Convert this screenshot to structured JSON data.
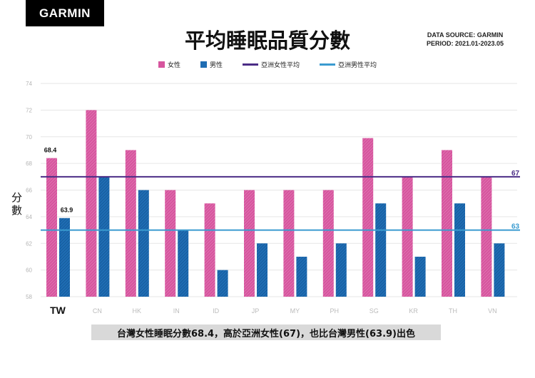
{
  "header": {
    "logo": "GARMIN",
    "title": "平均睡眠品質分數",
    "source_line1": "DATA SOURCE: GARMIN",
    "source_line2": "PERIOD: 2021.01-2023.05"
  },
  "caption": "台灣女性睡眠分數68.4，高於亞洲女性(67)，也比台灣男性(63.9)出色",
  "chart_data": {
    "type": "bar",
    "title": "平均睡眠品質分數",
    "ylabel": "分數",
    "ylim": [
      58,
      74
    ],
    "yticks": [
      58,
      60,
      62,
      64,
      66,
      68,
      70,
      72,
      74
    ],
    "grid": true,
    "legend_position": "top",
    "categories": [
      "TW",
      "CN",
      "HK",
      "IN",
      "ID",
      "JP",
      "MY",
      "PH",
      "SG",
      "KR",
      "TH",
      "VN"
    ],
    "highlight_category": "TW",
    "series": [
      {
        "name": "女性",
        "color": "#d6559e",
        "values": [
          68.4,
          72,
          69,
          66,
          65,
          66,
          66,
          66,
          69.9,
          67,
          69,
          67
        ]
      },
      {
        "name": "男性",
        "color": "#1f6db3",
        "values": [
          63.9,
          67,
          66,
          63,
          60,
          62,
          61,
          62,
          65,
          61,
          65,
          62
        ]
      }
    ],
    "reference_lines": [
      {
        "name": "亞洲女性平均",
        "value": 67,
        "label": "67",
        "color": "#4b2c86"
      },
      {
        "name": "亞洲男性平均",
        "value": 63,
        "label": "63",
        "color": "#3a9bd0"
      }
    ],
    "data_labels": [
      {
        "category": "TW",
        "series": "女性",
        "text": "68.4"
      },
      {
        "category": "TW",
        "series": "男性",
        "text": "63.9"
      }
    ]
  }
}
